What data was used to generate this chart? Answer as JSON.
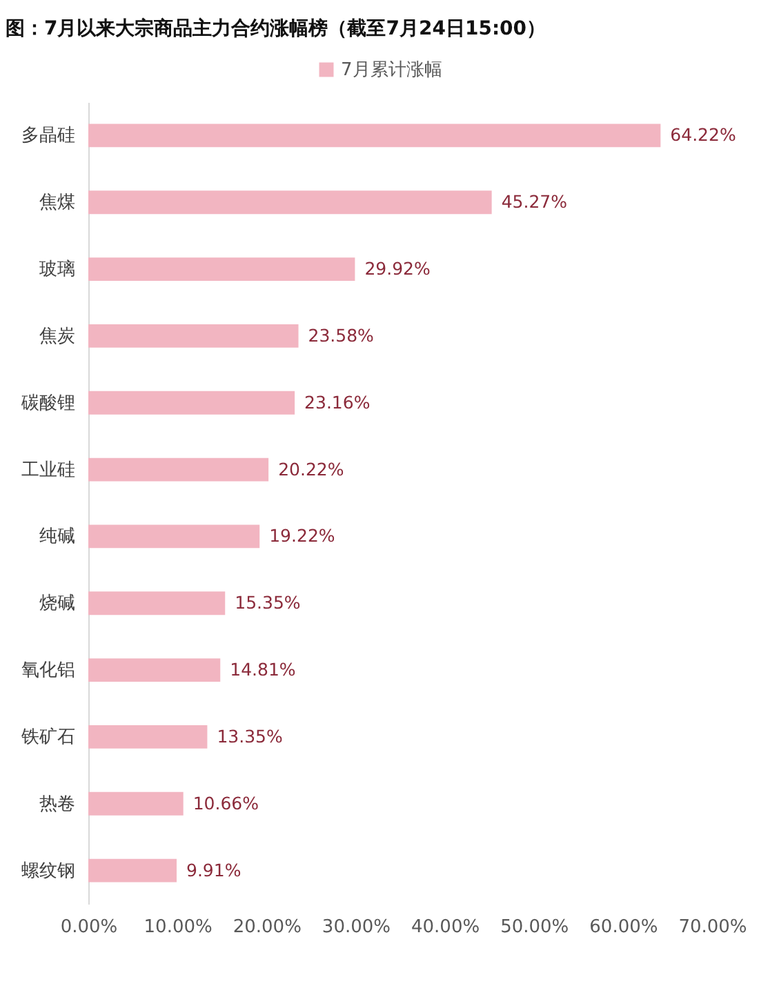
{
  "chart_data": {
    "type": "bar",
    "orientation": "horizontal",
    "title": "图：7月以来大宗商品主力合约涨幅榜（截至7月24日15:00）",
    "categories": [
      "多晶硅",
      "焦煤",
      "玻璃",
      "焦炭",
      "碳酸锂",
      "工业硅",
      "纯碱",
      "烧碱",
      "氧化铝",
      "铁矿石",
      "热卷",
      "螺纹钢"
    ],
    "series": [
      {
        "name": "7月累计涨幅",
        "color": "#f2b5c1",
        "values": [
          64.22,
          45.27,
          29.92,
          23.58,
          23.16,
          20.22,
          19.22,
          15.35,
          14.81,
          13.35,
          10.66,
          9.91
        ],
        "value_labels": [
          "64.22%",
          "45.27%",
          "29.92%",
          "23.58%",
          "23.16%",
          "20.22%",
          "19.22%",
          "15.35%",
          "14.81%",
          "13.35%",
          "10.66%",
          "9.91%"
        ]
      }
    ],
    "xlim": [
      0,
      70
    ],
    "xticks": [
      {
        "value": 0,
        "label": "0.00%"
      },
      {
        "value": 10,
        "label": "10.00%"
      },
      {
        "value": 20,
        "label": "20.00%"
      },
      {
        "value": 30,
        "label": "30.00%"
      },
      {
        "value": 40,
        "label": "40.00%"
      },
      {
        "value": 50,
        "label": "50.00%"
      },
      {
        "value": 60,
        "label": "60.00%"
      },
      {
        "value": 70,
        "label": "70.00%"
      }
    ],
    "legend": "top",
    "grid": false
  }
}
